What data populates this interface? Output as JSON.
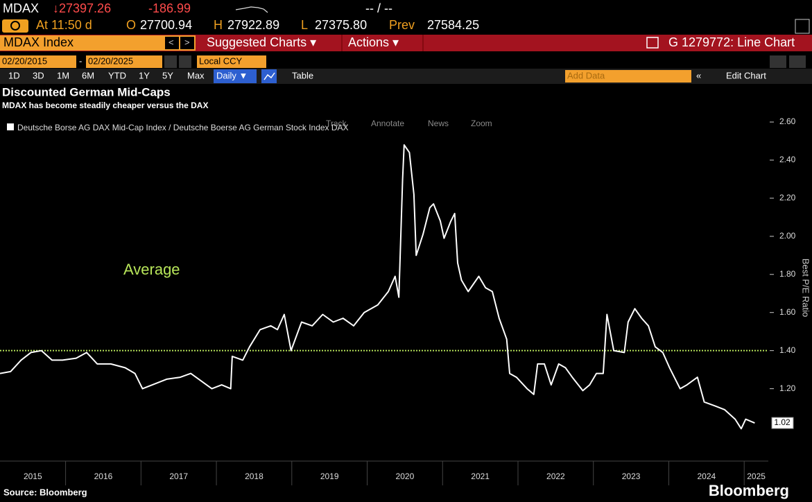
{
  "terminal": {
    "ticker": "MDAX",
    "last": "↓27397.26",
    "change": "-186.99",
    "bid_ask": "-- / --",
    "time": "At 11:50 d",
    "open_label": "O",
    "open": "27700.94",
    "high_label": "H",
    "high": "27922.89",
    "low_label": "L",
    "low": "27375.80",
    "prev_label": "Prev",
    "prev": "27584.25",
    "security": "MDAX Index",
    "suggested": "Suggested Charts ▾",
    "actions": "Actions ▾",
    "chart_id": "G 1279772: Line Chart",
    "start_date": "02/20/2015",
    "date_sep": "-",
    "end_date": "02/20/2025",
    "currency": "Local CCY",
    "periods": [
      "1D",
      "3D",
      "1M",
      "6M",
      "YTD",
      "1Y",
      "5Y",
      "Max"
    ],
    "frequency": "Daily ▼",
    "table": "Table",
    "add_data": "Add Data",
    "edit_chart": "Edit Chart",
    "tools": [
      "Track",
      "Annotate",
      "News",
      "Zoom"
    ],
    "source": "Source: Bloomberg",
    "brand": "Bloomberg"
  },
  "chart_data": {
    "type": "line",
    "title": "Discounted German Mid-Caps",
    "subtitle": "MDAX has become steadily cheaper versus the DAX",
    "y_label": "Best P/E Ratio",
    "categories": [
      "2015",
      "2016",
      "2017",
      "2018",
      "2019",
      "2020",
      "2021",
      "2022",
      "2023",
      "2024",
      "2025"
    ],
    "xlim": [
      2015.13,
      2025.32
    ],
    "xticks": [
      2016,
      2017,
      2018,
      2019,
      2020,
      2021,
      2022,
      2023,
      2024,
      2025
    ],
    "ylim": [
      0.82,
      2.64
    ],
    "yticks": [
      {
        "value": 1.2,
        "label": "1.20"
      },
      {
        "value": 1.4,
        "label": "1.40"
      },
      {
        "value": 1.6,
        "label": "1.60"
      },
      {
        "value": 1.8,
        "label": "1.80"
      },
      {
        "value": 2.0,
        "label": "2.00"
      },
      {
        "value": 2.2,
        "label": "2.20"
      },
      {
        "value": 2.4,
        "label": "2.40"
      },
      {
        "value": 2.6,
        "label": "2.60"
      }
    ],
    "reference_line": {
      "value": 1.4,
      "label": "Average",
      "color": "#b8e65a"
    },
    "x": [
      2015.13,
      2015.27,
      2015.41,
      2015.54,
      2015.68,
      2015.82,
      2015.96,
      2016.14,
      2016.28,
      2016.42,
      2016.6,
      2016.79,
      2016.92,
      2017.02,
      2017.15,
      2017.34,
      2017.52,
      2017.66,
      2017.8,
      2017.94,
      2018.07,
      2018.19,
      2018.21,
      2018.35,
      2018.44,
      2018.58,
      2018.72,
      2018.81,
      2018.9,
      2018.99,
      2019.13,
      2019.27,
      2019.41,
      2019.55,
      2019.68,
      2019.82,
      2019.96,
      2020.14,
      2020.28,
      2020.37,
      2020.42,
      2020.47,
      2020.49,
      2020.56,
      2020.62,
      2020.65,
      2020.74,
      2020.83,
      2020.88,
      2020.97,
      2021.02,
      2021.11,
      2021.16,
      2021.2,
      2021.25,
      2021.34,
      2021.48,
      2021.57,
      2021.66,
      2021.75,
      2021.85,
      2021.89,
      2021.98,
      2022.12,
      2022.21,
      2022.26,
      2022.35,
      2022.44,
      2022.54,
      2022.63,
      2022.72,
      2022.86,
      2022.95,
      2023.04,
      2023.13,
      2023.18,
      2023.27,
      2023.41,
      2023.46,
      2023.55,
      2023.64,
      2023.73,
      2023.82,
      2023.92,
      2024.01,
      2024.15,
      2024.24,
      2024.38,
      2024.47,
      2024.61,
      2024.74,
      2024.88,
      2024.96,
      2025.02,
      2025.14
    ],
    "series": [
      {
        "name": "Deutsche Borse AG DAX Mid-Cap Index / Deutsche Boerse AG German Stock Index DAX",
        "color": "#ffffff",
        "values": [
          1.28,
          1.29,
          1.35,
          1.39,
          1.4,
          1.35,
          1.35,
          1.36,
          1.39,
          1.33,
          1.33,
          1.31,
          1.28,
          1.2,
          1.22,
          1.25,
          1.26,
          1.28,
          1.24,
          1.2,
          1.22,
          1.2,
          1.37,
          1.35,
          1.42,
          1.51,
          1.53,
          1.51,
          1.59,
          1.4,
          1.55,
          1.53,
          1.59,
          1.55,
          1.57,
          1.53,
          1.6,
          1.64,
          1.71,
          1.79,
          1.68,
          2.3,
          2.48,
          2.44,
          2.22,
          1.9,
          2.01,
          2.15,
          2.17,
          2.08,
          1.99,
          2.08,
          2.12,
          1.86,
          1.77,
          1.71,
          1.79,
          1.73,
          1.71,
          1.57,
          1.46,
          1.28,
          1.26,
          1.2,
          1.17,
          1.33,
          1.33,
          1.22,
          1.33,
          1.31,
          1.26,
          1.19,
          1.22,
          1.28,
          1.28,
          1.59,
          1.4,
          1.39,
          1.55,
          1.62,
          1.57,
          1.53,
          1.42,
          1.39,
          1.31,
          1.2,
          1.22,
          1.26,
          1.13,
          1.11,
          1.09,
          1.04,
          0.99,
          1.04,
          1.02
        ]
      }
    ]
  }
}
